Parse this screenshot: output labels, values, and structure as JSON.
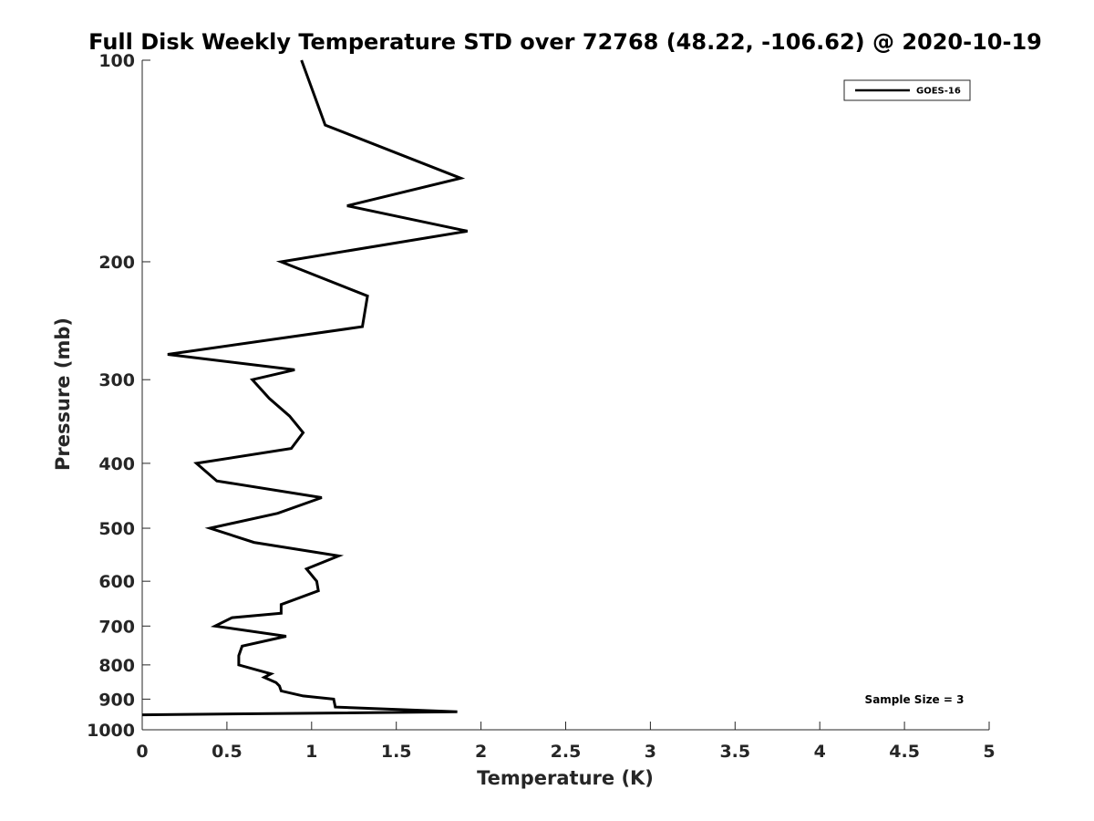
{
  "chart_data": {
    "type": "line",
    "title": "Full Disk Weekly Temperature STD over 72768 (48.22, -106.62) @ 2020-10-19",
    "xlabel": "Temperature (K)",
    "ylabel": "Pressure (mb)",
    "xlim": [
      0,
      5
    ],
    "ylim": [
      100,
      1000
    ],
    "yscale": "log",
    "y_reversed": true,
    "x_ticks": [
      "0",
      "0.5",
      "1",
      "1.5",
      "2",
      "2.5",
      "3",
      "3.5",
      "4",
      "4.5",
      "5"
    ],
    "y_ticks": [
      "100",
      "200",
      "300",
      "400",
      "500",
      "600",
      "700",
      "800",
      "900",
      "1000"
    ],
    "legend": {
      "entries": [
        "GOES-16"
      ],
      "placement": "top-right"
    },
    "annotation": "Sample Size = 3",
    "grid": false,
    "series": [
      {
        "name": "GOES-16",
        "color": "#000000",
        "points": [
          [
            0.94,
            100
          ],
          [
            1.08,
            125
          ],
          [
            1.88,
            150
          ],
          [
            1.21,
            165
          ],
          [
            1.92,
            180
          ],
          [
            0.82,
            200
          ],
          [
            1.33,
            225
          ],
          [
            1.3,
            250
          ],
          [
            0.15,
            275
          ],
          [
            0.9,
            290
          ],
          [
            0.65,
            300
          ],
          [
            0.75,
            320
          ],
          [
            0.87,
            340
          ],
          [
            0.95,
            360
          ],
          [
            0.88,
            380
          ],
          [
            0.32,
            400
          ],
          [
            0.44,
            425
          ],
          [
            1.06,
            450
          ],
          [
            0.8,
            475
          ],
          [
            0.4,
            500
          ],
          [
            0.66,
            525
          ],
          [
            1.16,
            550
          ],
          [
            0.97,
            575
          ],
          [
            1.03,
            600
          ],
          [
            1.04,
            620
          ],
          [
            0.82,
            650
          ],
          [
            0.82,
            670
          ],
          [
            0.53,
            680
          ],
          [
            0.43,
            700
          ],
          [
            0.85,
            725
          ],
          [
            0.59,
            750
          ],
          [
            0.57,
            775
          ],
          [
            0.57,
            800
          ],
          [
            0.76,
            825
          ],
          [
            0.72,
            835
          ],
          [
            0.79,
            850
          ],
          [
            0.81,
            860
          ],
          [
            0.82,
            875
          ],
          [
            0.95,
            890
          ],
          [
            1.13,
            900
          ],
          [
            1.14,
            925
          ],
          [
            1.86,
            940
          ],
          [
            0.0,
            950
          ]
        ]
      }
    ]
  }
}
